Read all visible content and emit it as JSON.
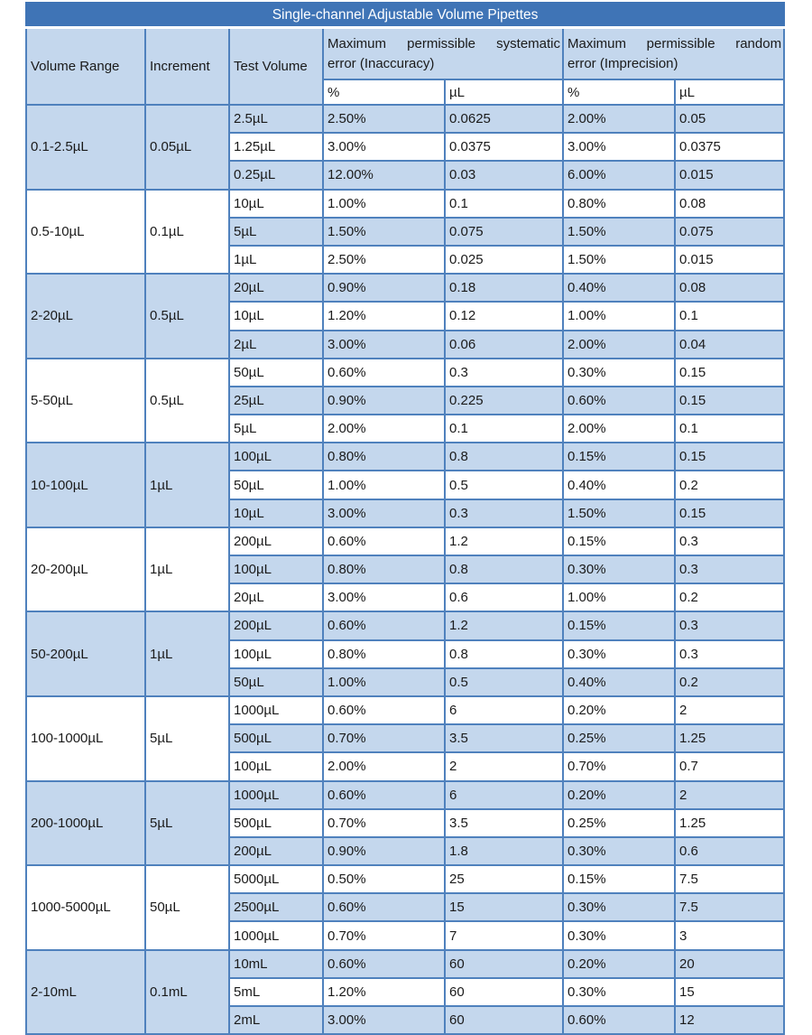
{
  "title": "Single-channel Adjustable Volume Pipettes",
  "colors": {
    "title_bg": "#3f74b6",
    "title_text": "#ffffff",
    "band_blue": "#c4d7ed",
    "border": "#4f81bd",
    "text": "#1a1a1a"
  },
  "headers": {
    "volume_range": "Volume Range",
    "increment": "Increment",
    "test_volume": "Test Volume",
    "systematic_line1": "Maximum permissible systematic",
    "systematic_line2": "error (Inaccuracy)",
    "random_line1": "Maximum permissible random",
    "random_line2": "error (Imprecision)",
    "sub_percent_sys": "%",
    "sub_ul_sys": "µL",
    "sub_percent_rand": "%",
    "sub_ul_rand": "µL"
  },
  "groups": [
    {
      "volume_range": "0.1-2.5µL",
      "increment": "0.05µL",
      "rows": [
        [
          "2.5µL",
          "2.50%",
          "0.0625",
          "2.00%",
          "0.05"
        ],
        [
          "1.25µL",
          "3.00%",
          "0.0375",
          "3.00%",
          "0.0375"
        ],
        [
          "0.25µL",
          "12.00%",
          "0.03",
          "6.00%",
          "0.015"
        ]
      ]
    },
    {
      "volume_range": "0.5-10µL",
      "increment": "0.1µL",
      "rows": [
        [
          "10µL",
          "1.00%",
          "0.1",
          "0.80%",
          "0.08"
        ],
        [
          "5µL",
          "1.50%",
          "0.075",
          "1.50%",
          "0.075"
        ],
        [
          "1µL",
          "2.50%",
          "0.025",
          "1.50%",
          "0.015"
        ]
      ]
    },
    {
      "volume_range": "2-20µL",
      "increment": "0.5µL",
      "rows": [
        [
          "20µL",
          "0.90%",
          "0.18",
          "0.40%",
          "0.08"
        ],
        [
          "10µL",
          "1.20%",
          "0.12",
          "1.00%",
          "0.1"
        ],
        [
          "2µL",
          "3.00%",
          "0.06",
          "2.00%",
          "0.04"
        ]
      ]
    },
    {
      "volume_range": "5-50µL",
      "increment": "0.5µL",
      "rows": [
        [
          "50µL",
          "0.60%",
          "0.3",
          "0.30%",
          "0.15"
        ],
        [
          "25µL",
          "0.90%",
          "0.225",
          "0.60%",
          "0.15"
        ],
        [
          "5µL",
          "2.00%",
          "0.1",
          "2.00%",
          "0.1"
        ]
      ]
    },
    {
      "volume_range": "10-100µL",
      "increment": "1µL",
      "rows": [
        [
          "100µL",
          "0.80%",
          "0.8",
          "0.15%",
          "0.15"
        ],
        [
          "50µL",
          "1.00%",
          "0.5",
          "0.40%",
          "0.2"
        ],
        [
          "10µL",
          "3.00%",
          "0.3",
          "1.50%",
          "0.15"
        ]
      ]
    },
    {
      "volume_range": "20-200µL",
      "increment": "1µL",
      "rows": [
        [
          "200µL",
          "0.60%",
          "1.2",
          "0.15%",
          "0.3"
        ],
        [
          "100µL",
          "0.80%",
          "0.8",
          "0.30%",
          "0.3"
        ],
        [
          "20µL",
          "3.00%",
          "0.6",
          "1.00%",
          "0.2"
        ]
      ]
    },
    {
      "volume_range": "50-200µL",
      "increment": "1µL",
      "rows": [
        [
          "200µL",
          "0.60%",
          "1.2",
          "0.15%",
          "0.3"
        ],
        [
          "100µL",
          "0.80%",
          "0.8",
          "0.30%",
          "0.3"
        ],
        [
          "50µL",
          "1.00%",
          "0.5",
          "0.40%",
          "0.2"
        ]
      ]
    },
    {
      "volume_range": "100-1000µL",
      "increment": "5µL",
      "rows": [
        [
          "1000µL",
          "0.60%",
          "6",
          "0.20%",
          "2"
        ],
        [
          "500µL",
          "0.70%",
          "3.5",
          "0.25%",
          "1.25"
        ],
        [
          "100µL",
          "2.00%",
          "2",
          "0.70%",
          "0.7"
        ]
      ]
    },
    {
      "volume_range": "200-1000µL",
      "increment": "5µL",
      "rows": [
        [
          "1000µL",
          "0.60%",
          "6",
          "0.20%",
          "2"
        ],
        [
          "500µL",
          "0.70%",
          "3.5",
          "0.25%",
          "1.25"
        ],
        [
          "200µL",
          "0.90%",
          "1.8",
          "0.30%",
          "0.6"
        ]
      ]
    },
    {
      "volume_range": "1000-5000µL",
      "increment": "50µL",
      "rows": [
        [
          "5000µL",
          "0.50%",
          "25",
          "0.15%",
          "7.5"
        ],
        [
          "2500µL",
          "0.60%",
          "15",
          "0.30%",
          "7.5"
        ],
        [
          "1000µL",
          "0.70%",
          "7",
          "0.30%",
          "3"
        ]
      ]
    },
    {
      "volume_range": "2-10mL",
      "increment": "0.1mL",
      "rows": [
        [
          "10mL",
          "0.60%",
          "60",
          "0.20%",
          "20"
        ],
        [
          "5mL",
          "1.20%",
          "60",
          "0.30%",
          "15"
        ],
        [
          "2mL",
          "3.00%",
          "60",
          "0.60%",
          "12"
        ]
      ]
    }
  ]
}
